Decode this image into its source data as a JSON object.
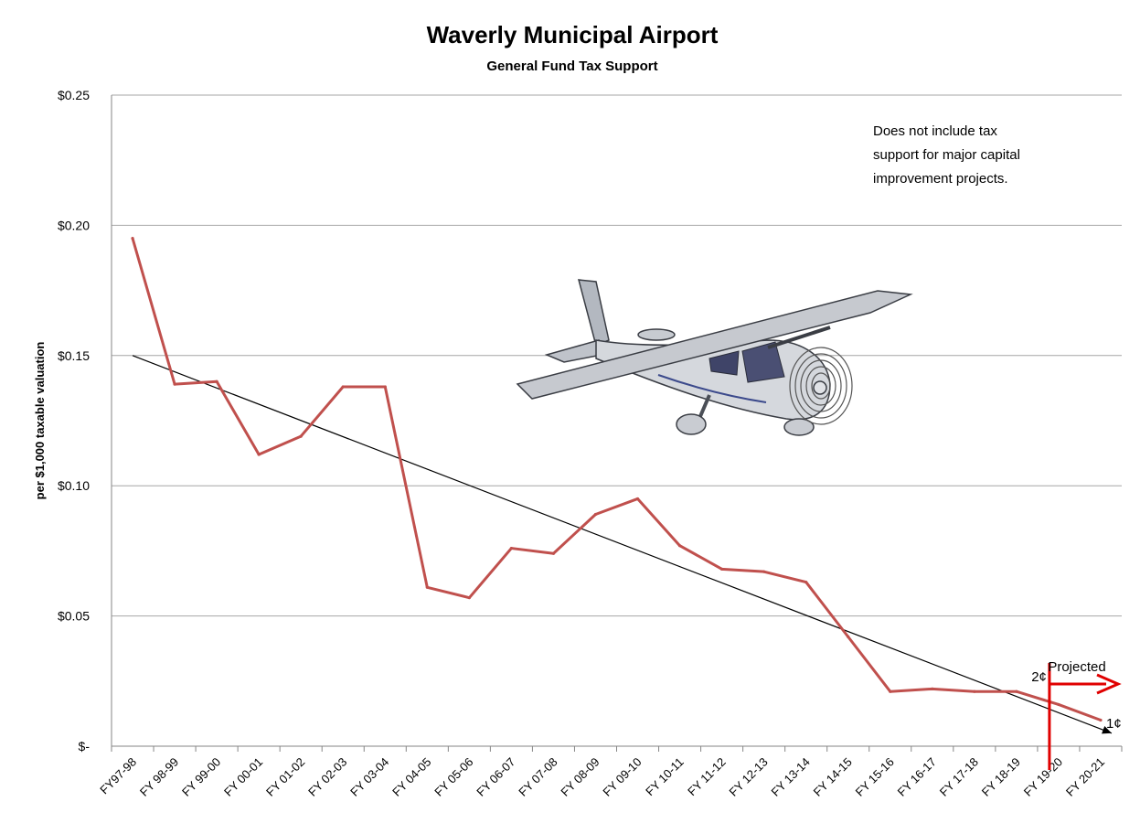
{
  "chart_data": {
    "type": "line",
    "title": "Waverly Municipal Airport",
    "subtitle": "General Fund Tax Support",
    "ylabel": "per $1,000 taxable valuation",
    "xlabel": "",
    "ylim": [
      0,
      0.25
    ],
    "yticks": [
      {
        "value": 0,
        "label": "$-"
      },
      {
        "value": 0.05,
        "label": "$0.05"
      },
      {
        "value": 0.1,
        "label": "$0.10"
      },
      {
        "value": 0.15,
        "label": "$0.15"
      },
      {
        "value": 0.2,
        "label": "$0.20"
      },
      {
        "value": 0.25,
        "label": "$0.25"
      }
    ],
    "grid": true,
    "categories": [
      "FY97-98",
      "FY 98-99",
      "FY 99-00",
      "FY 00-01",
      "FY 01-02",
      "FY 02-03",
      "FY 03-04",
      "FY 04-05",
      "FY 05-06",
      "FY 06-07",
      "FY 07-08",
      "FY 08-09",
      "FY 09-10",
      "FY 10-11",
      "FY 11-12",
      "FY 12-13",
      "FY 13-14",
      "FY 14-15",
      "FY 15-16",
      "FY 16-17",
      "FY 17-18",
      "FY 18-19",
      "FY 19-20",
      "FY 20-21"
    ],
    "series": [
      {
        "values": [
          0.195,
          0.139,
          0.14,
          0.112,
          0.119,
          0.138,
          0.138,
          0.061,
          0.057,
          0.076,
          0.074,
          0.089,
          0.095,
          0.077,
          0.068,
          0.067,
          0.063,
          0.042,
          0.021,
          0.022,
          0.021,
          0.021,
          0.016,
          0.01
        ],
        "color": "#c0504d"
      }
    ],
    "trendline": {
      "start": 0.15,
      "end": 0.005,
      "color": "#000000"
    },
    "annotations": {
      "note": [
        "Does not include tax",
        "support for major capital",
        "improvement projects."
      ],
      "projected_label": "Projected",
      "marker_2c": "2¢",
      "marker_1c": "1¢",
      "projection_color": "#e00000"
    }
  }
}
